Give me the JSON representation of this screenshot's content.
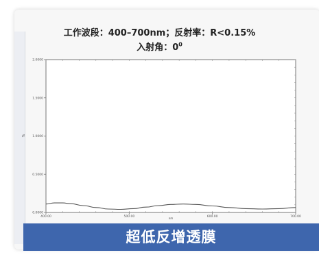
{
  "chart_data": {
    "type": "line",
    "title": "工作波段：400–700nm；反射率：R<0.15%",
    "subtitle_prefix": "入射角：0",
    "subtitle_sup": "0",
    "xlabel": "nm",
    "ylabel": "%",
    "xlim": [
      400,
      700
    ],
    "ylim": [
      0,
      2
    ],
    "x_ticks": [
      "400.00",
      "500.00",
      "600.00",
      "700.00"
    ],
    "y_ticks": [
      "0.0000",
      "0.5000",
      "1.0000",
      "1.5000",
      "2.0000"
    ],
    "grid": false,
    "series": [
      {
        "color": "#555555",
        "x": [
          400,
          410,
          420,
          430,
          445,
          460,
          475,
          490,
          505,
          520,
          535,
          550,
          565,
          580,
          600,
          620,
          640,
          660,
          680,
          700
        ],
        "y": [
          0.11,
          0.125,
          0.125,
          0.115,
          0.09,
          0.065,
          0.045,
          0.04,
          0.05,
          0.07,
          0.09,
          0.105,
          0.11,
          0.105,
          0.085,
          0.065,
          0.05,
          0.045,
          0.05,
          0.065
        ]
      }
    ]
  },
  "banner": {
    "text": "超低反增透膜",
    "color": "#3e66ad"
  }
}
